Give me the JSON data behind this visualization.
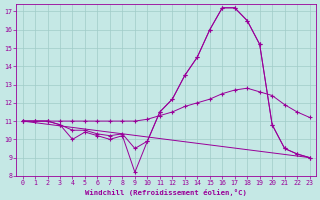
{
  "xlabel": "Windchill (Refroidissement éolien,°C)",
  "xlim": [
    -0.5,
    23.5
  ],
  "ylim": [
    8,
    17.4
  ],
  "yticks": [
    8,
    9,
    10,
    11,
    12,
    13,
    14,
    15,
    16,
    17
  ],
  "xticks": [
    0,
    1,
    2,
    3,
    4,
    5,
    6,
    7,
    8,
    9,
    10,
    11,
    12,
    13,
    14,
    15,
    16,
    17,
    18,
    19,
    20,
    21,
    22,
    23
  ],
  "bg_color": "#c5e8e5",
  "grid_color": "#a0ccc8",
  "line_color": "#990099",
  "curve1_x": [
    0,
    1,
    2,
    3,
    4,
    5,
    6,
    7,
    8,
    9,
    10,
    11,
    12,
    13,
    14,
    15,
    16,
    17,
    18,
    19,
    20,
    21,
    22,
    23
  ],
  "curve1_y": [
    11,
    11,
    11,
    10.8,
    10.5,
    10.5,
    10.3,
    10.2,
    10.3,
    9.5,
    9.9,
    11.5,
    12.2,
    13.5,
    14.5,
    16.0,
    17.2,
    17.2,
    16.5,
    15.2,
    10.8,
    9.5,
    9.2,
    9.0
  ],
  "curve2_x": [
    0,
    1,
    2,
    3,
    4,
    5,
    6,
    7,
    8,
    9,
    10,
    11,
    12,
    13,
    14,
    15,
    16,
    17,
    18,
    19,
    20,
    21,
    22,
    23
  ],
  "curve2_y": [
    11,
    11,
    11,
    10.8,
    10.0,
    10.4,
    10.2,
    10.0,
    10.2,
    8.2,
    9.9,
    11.5,
    12.2,
    13.5,
    14.5,
    16.0,
    17.2,
    17.2,
    16.5,
    15.2,
    10.8,
    9.5,
    9.2,
    9.0
  ],
  "curve3_x": [
    0,
    1,
    2,
    3,
    4,
    5,
    6,
    7,
    8,
    9,
    10,
    11,
    12,
    13,
    14,
    15,
    16,
    17,
    18,
    19,
    20,
    21,
    22,
    23
  ],
  "curve3_y": [
    11,
    11,
    11,
    11,
    11,
    11,
    11,
    11,
    11,
    11,
    11.1,
    11.3,
    11.5,
    11.8,
    12.0,
    12.2,
    12.5,
    12.7,
    12.8,
    12.6,
    12.4,
    11.9,
    11.5,
    11.2
  ],
  "line4_x": [
    0,
    23
  ],
  "line4_y": [
    11,
    9.0
  ]
}
